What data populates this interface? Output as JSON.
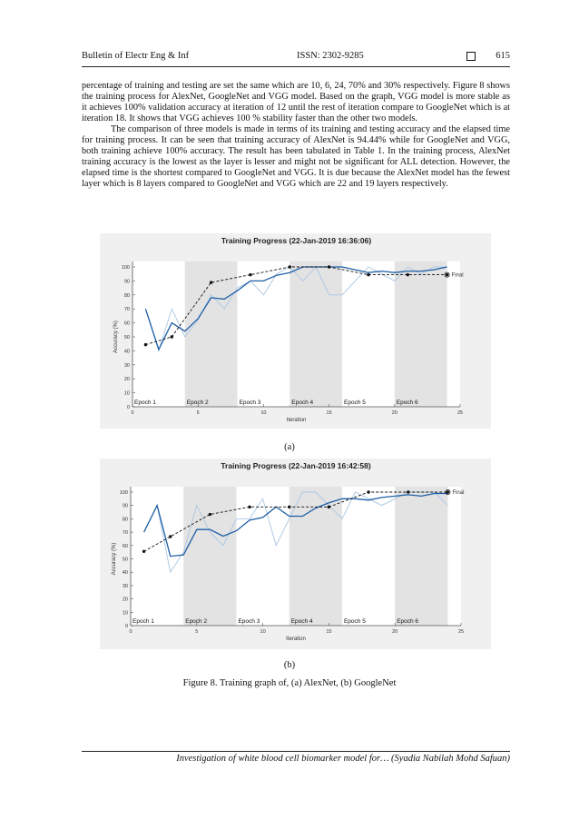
{
  "header": {
    "journal": "Bulletin of Electr Eng & Inf",
    "issn": "ISSN: 2302-9285",
    "page": "615"
  },
  "paragraphs": [
    "percentage of training and testing are set the same which are 10, 6, 24, 70% and 30% respectively. Figure 8 shows the training process for AlexNet, GoogleNet and VGG model. Based on the graph, VGG model is more stable as it achieves 100% validation accuracy at iteration of 12 until the rest of iteration compare to GoogleNet which is at iteration 18. It shows that VGG achieves 100 % stability faster than the other two models.",
    "The comparison of three models is made in terms of its training and testing accuracy and the elapsed time for training process. It can be seen that training accuracy of AlexNet is 94.44% while for GoogleNet and VGG, both training achieve 100% accuracy. The result has been tabulated in Table 1. In the training process, AlexNet training accuracy is the lowest as the layer is lesser and might not be significant for ALL detection. However, the elapsed time is the shortest compared to GoogleNet and VGG. It is due because the AlexNet model has the fewest layer which is 8 layers compared to GoogleNet and VGG which are 22 and 19 layers respectively."
  ],
  "chart_data": [
    {
      "type": "line",
      "title": "Training Progress (22-Jan-2019 16:36:06)",
      "xlabel": "Iteration",
      "ylabel": "Accuracy (%)",
      "xlim": [
        0,
        25
      ],
      "ylim": [
        0,
        100
      ],
      "xticks": [
        0,
        5,
        10,
        15,
        20,
        25
      ],
      "yticks": [
        0,
        10,
        20,
        30,
        40,
        50,
        60,
        70,
        80,
        90,
        100
      ],
      "epochs": [
        "Epoch 1",
        "Epoch 2",
        "Epoch 3",
        "Epoch 4",
        "Epoch 5",
        "Epoch 6"
      ],
      "epoch_ranges": [
        [
          0,
          4
        ],
        [
          4,
          8
        ],
        [
          8,
          12
        ],
        [
          12,
          16
        ],
        [
          16,
          20
        ],
        [
          20,
          24
        ]
      ],
      "final_label": "Final",
      "series": [
        {
          "role": "raw",
          "color": "#a9c6e3",
          "x": [
            1,
            2,
            3,
            4,
            5,
            6,
            7,
            8,
            9,
            10,
            11,
            12,
            13,
            14,
            15,
            16,
            17,
            18,
            19,
            20,
            21,
            22,
            23,
            24
          ],
          "values": [
            70,
            40,
            70,
            50,
            62,
            80,
            70,
            85,
            90,
            80,
            95,
            100,
            90,
            100,
            80,
            80,
            90,
            100,
            95,
            90,
            100,
            95,
            100,
            100
          ]
        },
        {
          "role": "smoothed",
          "color": "#1f5fa6",
          "x": [
            1,
            2,
            3,
            4,
            5,
            6,
            7,
            8,
            9,
            10,
            11,
            12,
            13,
            14,
            15,
            16,
            17,
            18,
            19,
            20,
            21,
            22,
            23,
            24
          ],
          "values": [
            70,
            41,
            60,
            54,
            63,
            78,
            77,
            83,
            90,
            90,
            94,
            96,
            100,
            100,
            100,
            100,
            98,
            96,
            97,
            96,
            97,
            97,
            98,
            100
          ]
        },
        {
          "role": "validation",
          "color": "#111111",
          "x": [
            1,
            3,
            6,
            9,
            12,
            15,
            18,
            21,
            24
          ],
          "values": [
            44.4,
            50,
            88.9,
            94.4,
            100,
            100,
            94.4,
            94.4,
            94.4
          ]
        }
      ]
    },
    {
      "type": "line",
      "title": "Training Progress (22-Jan-2019 16:42:58)",
      "xlabel": "Iteration",
      "ylabel": "Accuracy (%)",
      "xlim": [
        0,
        25
      ],
      "ylim": [
        0,
        100
      ],
      "xticks": [
        0,
        5,
        10,
        15,
        20,
        25
      ],
      "yticks": [
        0,
        10,
        20,
        30,
        40,
        50,
        60,
        70,
        80,
        90,
        100
      ],
      "epochs": [
        "Epoch 1",
        "Epoch 2",
        "Epoch 3",
        "Epoch 4",
        "Epoch 5",
        "Epoch 6"
      ],
      "epoch_ranges": [
        [
          0,
          4
        ],
        [
          4,
          8
        ],
        [
          8,
          12
        ],
        [
          12,
          16
        ],
        [
          16,
          20
        ],
        [
          20,
          24
        ]
      ],
      "final_label": "Final",
      "series": [
        {
          "role": "raw",
          "color": "#a9c6e3",
          "x": [
            1,
            2,
            3,
            4,
            5,
            6,
            7,
            8,
            9,
            10,
            11,
            12,
            13,
            14,
            15,
            16,
            17,
            18,
            19,
            20,
            21,
            22,
            23,
            24
          ],
          "values": [
            70,
            90,
            40,
            55,
            90,
            70,
            60,
            80,
            80,
            95,
            60,
            80,
            100,
            100,
            90,
            80,
            100,
            95,
            90,
            95,
            100,
            100,
            100,
            90
          ]
        },
        {
          "role": "smoothed",
          "color": "#1f5fa6",
          "x": [
            1,
            2,
            3,
            4,
            5,
            6,
            7,
            8,
            9,
            10,
            11,
            12,
            13,
            14,
            15,
            16,
            17,
            18,
            19,
            20,
            21,
            22,
            23,
            24
          ],
          "values": [
            70,
            90,
            52,
            53,
            72,
            72,
            67,
            71,
            79,
            81,
            89,
            82,
            82,
            88,
            92,
            95,
            95,
            94,
            96,
            97,
            98,
            97,
            99,
            99
          ]
        },
        {
          "role": "validation",
          "color": "#111111",
          "x": [
            1,
            3,
            6,
            9,
            12,
            15,
            18,
            21,
            24
          ],
          "values": [
            55.6,
            66.7,
            83.3,
            88.9,
            88.9,
            88.9,
            100,
            100,
            100
          ]
        }
      ]
    }
  ],
  "sublabels": [
    "(a)",
    "(b)"
  ],
  "caption": "Figure 8. Training graph of, (a) AlexNet, (b) GoogleNet",
  "footer": "Investigation of white blood cell biomarker model for… (Syadia Nabilah Mohd Safuan)"
}
